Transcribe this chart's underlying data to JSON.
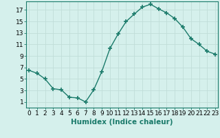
{
  "xlabel": "Humidex (Indice chaleur)",
  "x": [
    0,
    1,
    2,
    3,
    4,
    5,
    6,
    7,
    8,
    9,
    10,
    11,
    12,
    13,
    14,
    15,
    16,
    17,
    18,
    19,
    20,
    21,
    22,
    23
  ],
  "y": [
    6.5,
    6.0,
    5.0,
    3.3,
    3.1,
    1.8,
    1.7,
    1.0,
    3.1,
    6.3,
    10.3,
    12.8,
    15.0,
    16.3,
    17.5,
    18.0,
    17.2,
    16.5,
    15.5,
    14.0,
    12.0,
    11.0,
    9.8,
    9.3
  ],
  "line_color": "#1a7a6a",
  "marker": "+",
  "marker_size": 4,
  "line_width": 1.0,
  "bg_color": "#d5f0ec",
  "grid_color": "#c0ddd8",
  "yticks": [
    1,
    3,
    5,
    7,
    9,
    11,
    13,
    15,
    17
  ],
  "xticks": [
    0,
    1,
    2,
    3,
    4,
    5,
    6,
    7,
    8,
    9,
    10,
    11,
    12,
    13,
    14,
    15,
    16,
    17,
    18,
    19,
    20,
    21,
    22,
    23
  ],
  "xlim": [
    -0.3,
    23.3
  ],
  "ylim": [
    0.0,
    18.5
  ],
  "xlabel_fontsize": 7.5,
  "tick_fontsize": 6.5
}
